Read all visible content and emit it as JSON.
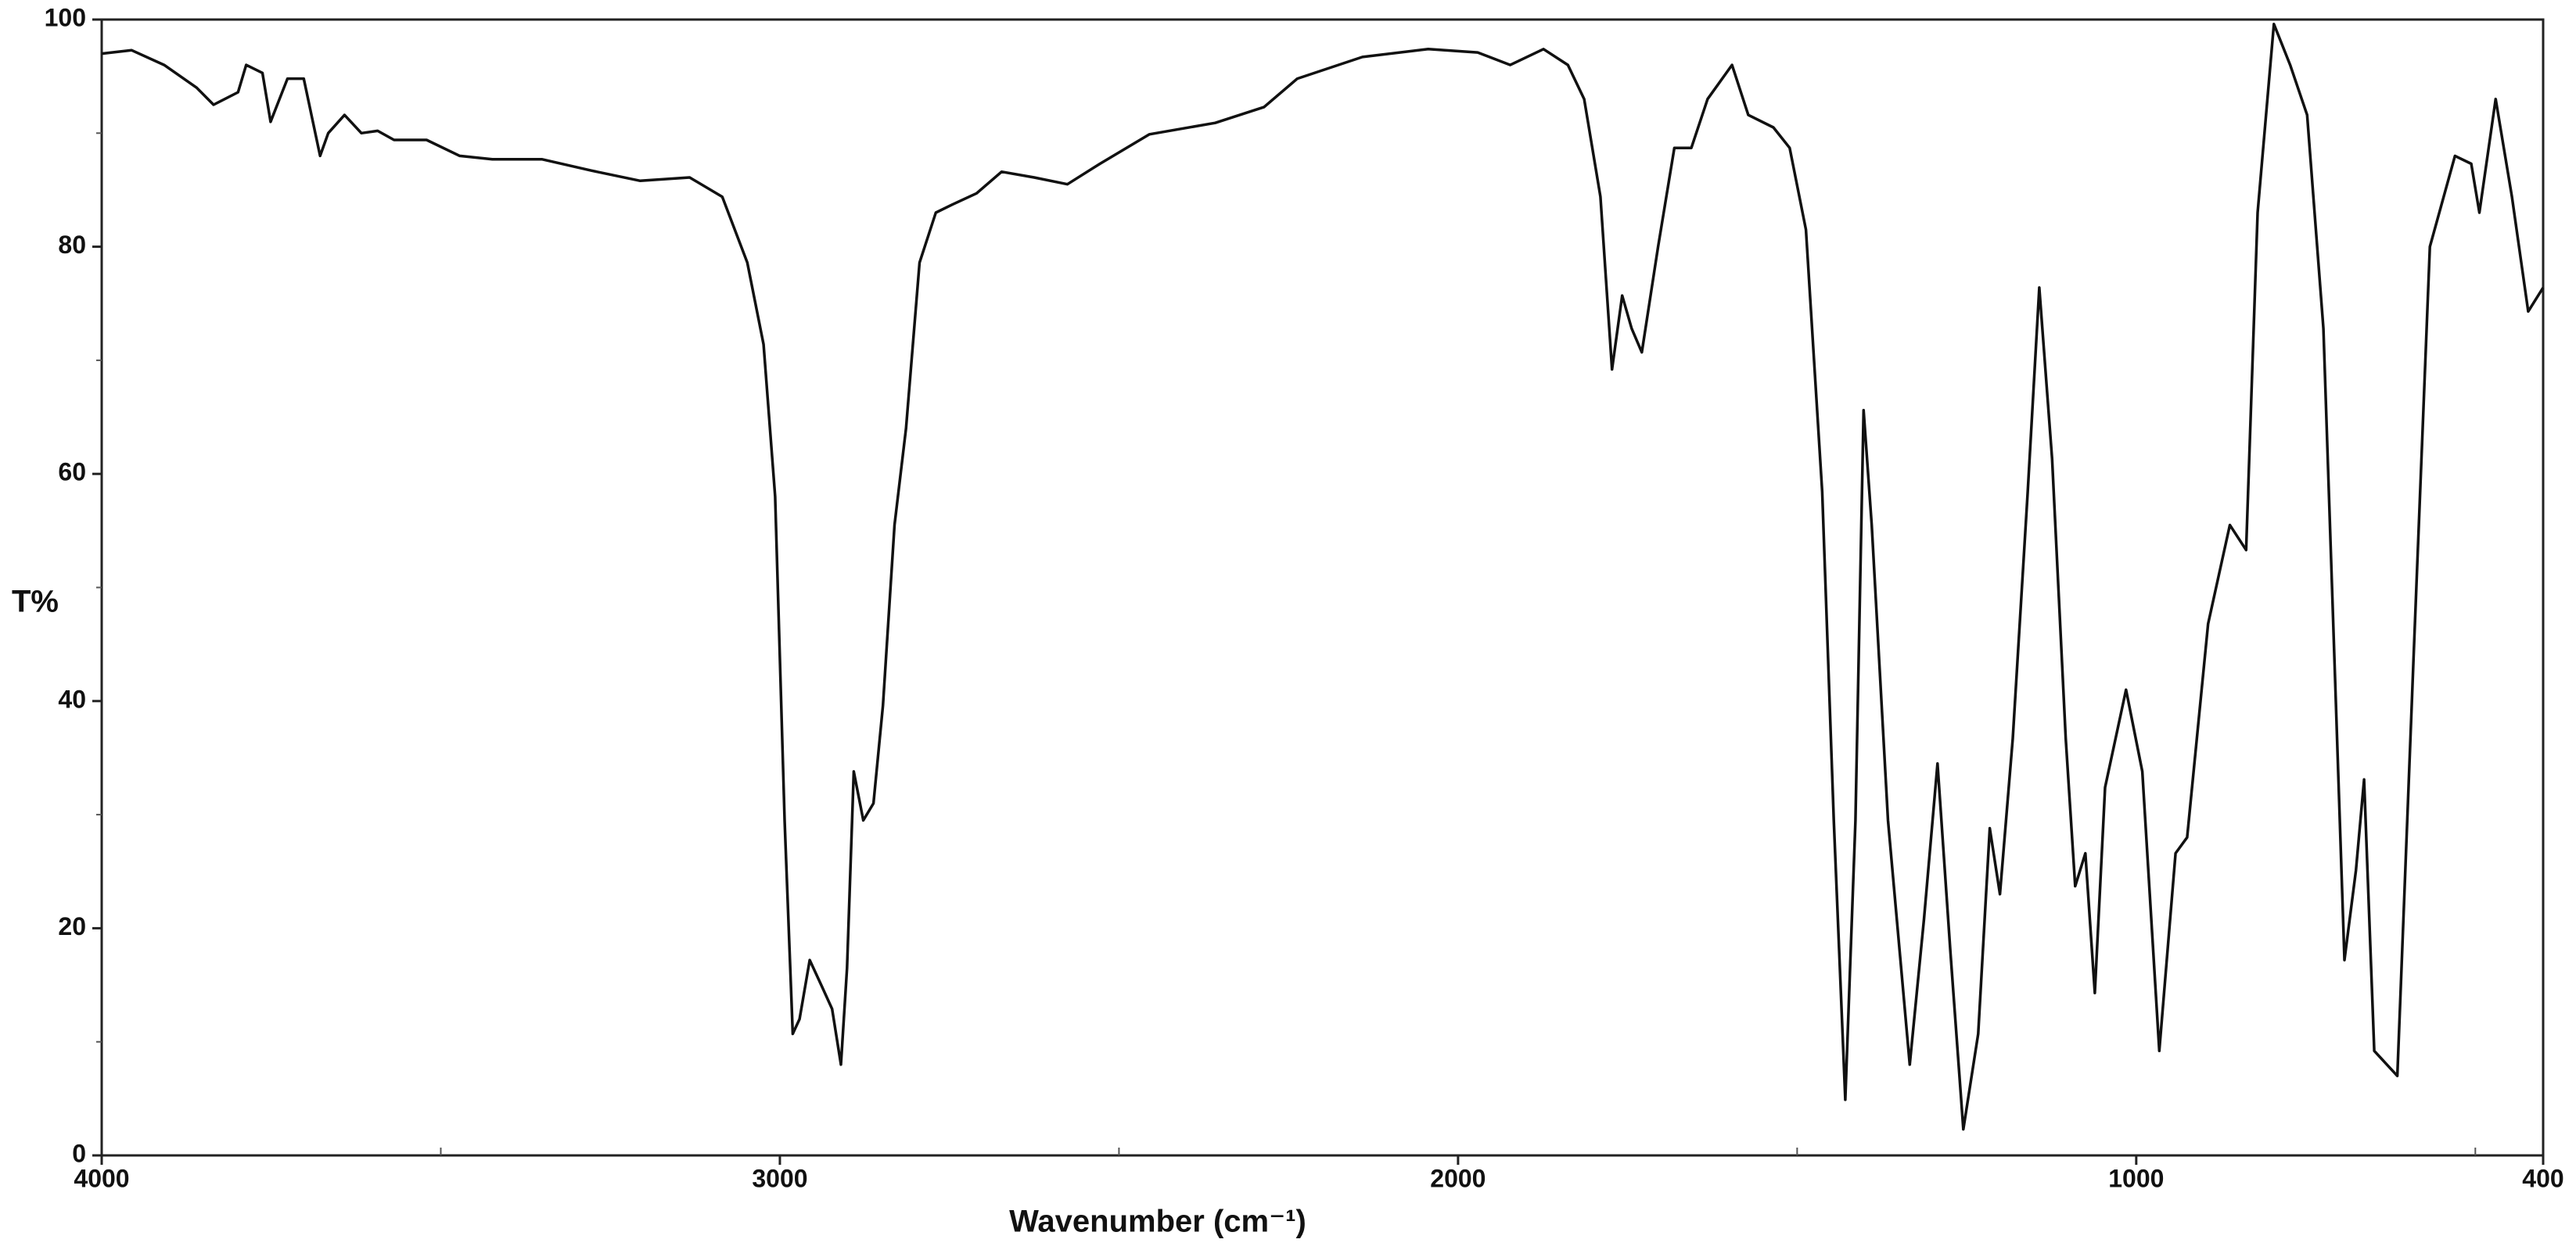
{
  "chart_data": {
    "type": "line",
    "x_label": "Wavenumber (cm⁻¹)",
    "y_label": "T%",
    "color": "#111111",
    "xlim": [
      4000,
      400
    ],
    "ylim": [
      0,
      100
    ],
    "xticks": [
      4000,
      3000,
      2000,
      1000,
      400
    ],
    "xminor_ticks": [
      3500,
      2500,
      1500,
      500
    ],
    "yticks": [
      0,
      20,
      40,
      60,
      80,
      100
    ],
    "yminor_ticks": [
      10,
      30,
      50,
      70,
      90
    ],
    "x": [
      4000,
      3956,
      3908,
      3860,
      3835,
      3799,
      3787,
      3763,
      3751,
      3726,
      3702,
      3678,
      3666,
      3642,
      3617,
      3593,
      3569,
      3521,
      3472,
      3424,
      3351,
      3278,
      3206,
      3133,
      3085,
      3048,
      3024,
      3007,
      2993,
      2981,
      2971,
      2956,
      2939,
      2923,
      2910,
      2901,
      2891,
      2877,
      2862,
      2848,
      2831,
      2814,
      2794,
      2770,
      2746,
      2710,
      2673,
      2625,
      2576,
      2528,
      2455,
      2358,
      2286,
      2237,
      2141,
      2044,
      1971,
      1923,
      1874,
      1838,
      1814,
      1790,
      1773,
      1758,
      1744,
      1729,
      1705,
      1681,
      1656,
      1632,
      1596,
      1572,
      1535,
      1511,
      1487,
      1463,
      1446,
      1429,
      1414,
      1402,
      1390,
      1366,
      1334,
      1313,
      1293,
      1274,
      1255,
      1233,
      1216,
      1201,
      1182,
      1160,
      1143,
      1124,
      1104,
      1090,
      1075,
      1061,
      1046,
      1015,
      991,
      966,
      942,
      925,
      894,
      862,
      838,
      821,
      797,
      773,
      748,
      724,
      693,
      676,
      664,
      649,
      615,
      591,
      567,
      530,
      506,
      494,
      470,
      446,
      422,
      400
    ],
    "values": [
      97,
      97.3,
      96,
      94,
      92.5,
      93.6,
      96,
      95.3,
      91,
      94.8,
      94.8,
      88,
      90,
      91.6,
      90,
      90.2,
      89.4,
      89.4,
      88,
      87.7,
      87.7,
      86.7,
      85.8,
      86.1,
      84.4,
      78.6,
      71.4,
      58,
      29.5,
      10.7,
      12,
      17.2,
      15,
      12.9,
      8,
      16.5,
      33.8,
      29.5,
      31,
      39.6,
      55.5,
      64,
      78.6,
      83,
      83.7,
      84.7,
      86.6,
      86.1,
      85.5,
      87.3,
      89.9,
      90.9,
      92.3,
      94.8,
      96.7,
      97.4,
      97.1,
      96,
      97.4,
      96,
      93,
      84.4,
      69.2,
      75.7,
      72.8,
      70.7,
      80,
      88.7,
      88.7,
      93,
      96,
      91.6,
      90.5,
      88.7,
      81.5,
      58.4,
      29.5,
      4.9,
      29.5,
      65.6,
      55.5,
      29.5,
      8,
      20.8,
      34.5,
      17.9,
      2.3,
      10.7,
      28.8,
      23,
      36.7,
      58.4,
      76.4,
      61.3,
      36.7,
      23.7,
      26.6,
      14.3,
      32.4,
      41,
      33.8,
      9.2,
      26.6,
      28,
      46.8,
      55.5,
      53.3,
      83,
      99.6,
      96,
      91.6,
      72.8,
      17.2,
      25.1,
      33.1,
      9.2,
      7,
      43.9,
      80,
      88,
      87.3,
      83,
      93,
      84.4,
      74.3,
      76.4
    ]
  }
}
